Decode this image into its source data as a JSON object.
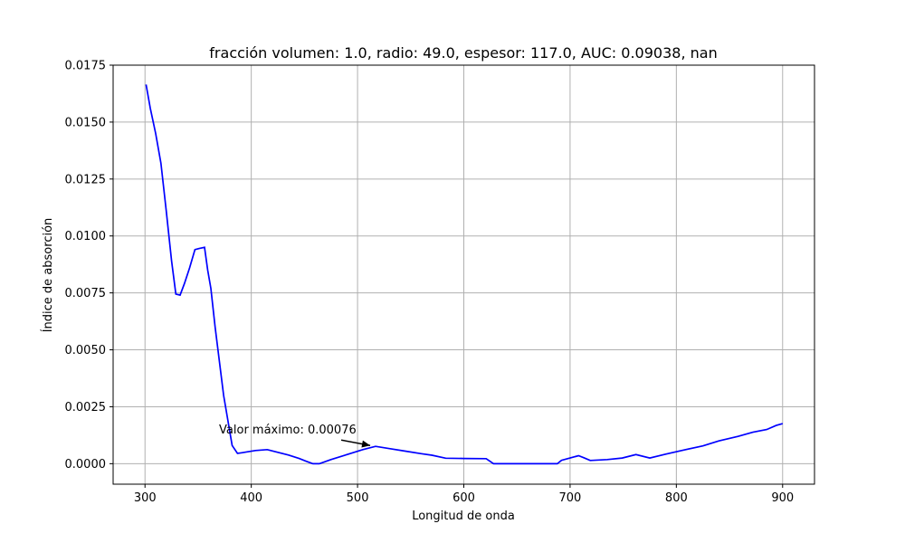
{
  "chart_data": {
    "type": "line",
    "title": "fracción volumen: 1.0, radio: 49.0, espesor: 117.0, AUC: 0.09038, nan",
    "xlabel": "Longitud de onda",
    "ylabel": "Índice de absorción",
    "xlim": [
      270,
      930
    ],
    "ylim": [
      -0.0009,
      0.0175
    ],
    "xticks": [
      300,
      400,
      500,
      600,
      700,
      800,
      900
    ],
    "xtick_labels": [
      "300",
      "400",
      "500",
      "600",
      "700",
      "800",
      "900"
    ],
    "yticks": [
      0.0,
      0.0025,
      0.005,
      0.0075,
      0.01,
      0.0125,
      0.015,
      0.0175
    ],
    "ytick_labels": [
      "0.0000",
      "0.0025",
      "0.0050",
      "0.0075",
      "0.0100",
      "0.0125",
      "0.0150",
      "0.0175"
    ],
    "grid": true,
    "line_color": "#0000ff",
    "series": [
      {
        "x": [
          301,
          305,
          310,
          315,
          320,
          325,
          329,
          333,
          337,
          342,
          347,
          351,
          356,
          359,
          362,
          366,
          370,
          374,
          378,
          382,
          387,
          391,
          396,
          404,
          415,
          425,
          435,
          445,
          452,
          458,
          464,
          475,
          490,
          505,
          517,
          530,
          545,
          560,
          570,
          583,
          600,
          621,
          628,
          645,
          665,
          688,
          692,
          700,
          708,
          713,
          719,
          735,
          749,
          762,
          775,
          790,
          805,
          825,
          840,
          858,
          872,
          885,
          894,
          900
        ],
        "y": [
          0.01665,
          0.0156,
          0.0145,
          0.0132,
          0.0111,
          0.0089,
          0.00745,
          0.0074,
          0.0079,
          0.0086,
          0.0094,
          0.00945,
          0.0095,
          0.0085,
          0.0077,
          0.006,
          0.0045,
          0.003,
          0.0019,
          0.0008,
          0.00045,
          0.00048,
          0.00052,
          0.00058,
          0.00062,
          0.0005,
          0.00038,
          0.00023,
          0.0001,
          0.0,
          0.0,
          0.00018,
          0.0004,
          0.00062,
          0.00076,
          0.00066,
          0.00055,
          0.00044,
          0.00037,
          0.00024,
          0.00023,
          0.00022,
          0.0,
          0.0,
          0.0,
          0.0,
          0.00015,
          0.00025,
          0.00035,
          0.00026,
          0.00014,
          0.00018,
          0.00025,
          0.0004,
          0.00025,
          0.00042,
          0.00058,
          0.00078,
          0.001,
          0.0012,
          0.00138,
          0.0015,
          0.00168,
          0.00176
        ]
      }
    ],
    "annotation": {
      "text": "Valor máximo: 0.00076",
      "xy": [
        517,
        0.00076
      ]
    }
  }
}
